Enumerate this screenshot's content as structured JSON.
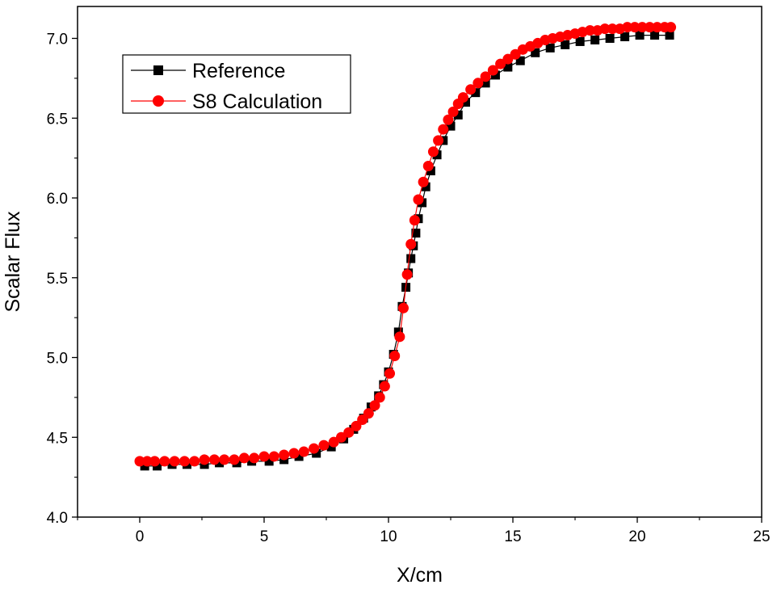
{
  "chart_data": {
    "type": "scatter",
    "xlabel": "X/cm",
    "ylabel": "Scalar Flux",
    "xlim": [
      -2.5,
      25
    ],
    "ylim": [
      4.0,
      7.2
    ],
    "x_ticks": [
      0,
      5,
      10,
      15,
      20,
      25
    ],
    "x_tick_labels": [
      "0",
      "5",
      "10",
      "15",
      "20",
      "25"
    ],
    "y_ticks": [
      4.0,
      4.5,
      5.0,
      5.5,
      6.0,
      6.5,
      7.0
    ],
    "y_tick_labels": [
      "4.0",
      "4.5",
      "5.0",
      "5.5",
      "6.0",
      "6.5",
      "7.0"
    ],
    "grid": false,
    "legend_position": "top-left",
    "series": [
      {
        "name": "Reference",
        "color": "#000000",
        "marker": "square",
        "x": [
          0.2,
          0.7,
          1.3,
          1.9,
          2.6,
          3.2,
          3.9,
          4.5,
          5.2,
          5.8,
          6.4,
          7.1,
          7.7,
          8.2,
          8.6,
          9.0,
          9.3,
          9.6,
          9.8,
          10.0,
          10.2,
          10.4,
          10.55,
          10.7,
          10.8,
          10.9,
          11.0,
          11.1,
          11.2,
          11.35,
          11.5,
          11.7,
          11.95,
          12.2,
          12.5,
          12.8,
          13.1,
          13.5,
          13.9,
          14.3,
          14.8,
          15.3,
          15.9,
          16.5,
          17.1,
          17.7,
          18.3,
          18.9,
          19.5,
          20.1,
          20.7,
          21.3
        ],
        "y": [
          4.32,
          4.32,
          4.33,
          4.33,
          4.33,
          4.34,
          4.34,
          4.35,
          4.35,
          4.36,
          4.38,
          4.4,
          4.44,
          4.49,
          4.55,
          4.62,
          4.69,
          4.76,
          4.83,
          4.91,
          5.02,
          5.16,
          5.32,
          5.44,
          5.53,
          5.62,
          5.7,
          5.78,
          5.87,
          5.97,
          6.07,
          6.17,
          6.27,
          6.36,
          6.45,
          6.52,
          6.6,
          6.66,
          6.72,
          6.77,
          6.82,
          6.86,
          6.91,
          6.94,
          6.96,
          6.98,
          6.99,
          7.0,
          7.01,
          7.02,
          7.02,
          7.02
        ]
      },
      {
        "name": "S8 Calculation",
        "color": "#ff0000",
        "marker": "circle",
        "x": [
          0.0,
          0.3,
          0.6,
          1.0,
          1.4,
          1.8,
          2.2,
          2.6,
          3.0,
          3.4,
          3.8,
          4.2,
          4.6,
          5.0,
          5.4,
          5.8,
          6.2,
          6.6,
          7.0,
          7.4,
          7.8,
          8.1,
          8.4,
          8.7,
          8.95,
          9.2,
          9.45,
          9.65,
          9.85,
          10.05,
          10.25,
          10.45,
          10.6,
          10.75,
          10.9,
          11.05,
          11.2,
          11.4,
          11.6,
          11.8,
          12.0,
          12.2,
          12.4,
          12.6,
          12.8,
          13.0,
          13.3,
          13.6,
          13.9,
          14.2,
          14.5,
          14.8,
          15.1,
          15.4,
          15.7,
          16.0,
          16.3,
          16.6,
          16.9,
          17.2,
          17.5,
          17.8,
          18.1,
          18.4,
          18.7,
          19.0,
          19.3,
          19.6,
          19.9,
          20.2,
          20.5,
          20.8,
          21.1,
          21.35
        ],
        "y": [
          4.35,
          4.35,
          4.35,
          4.35,
          4.35,
          4.35,
          4.35,
          4.36,
          4.36,
          4.36,
          4.36,
          4.37,
          4.37,
          4.38,
          4.38,
          4.39,
          4.4,
          4.41,
          4.43,
          4.45,
          4.47,
          4.5,
          4.53,
          4.57,
          4.61,
          4.65,
          4.7,
          4.75,
          4.82,
          4.9,
          5.01,
          5.13,
          5.31,
          5.52,
          5.71,
          5.86,
          5.99,
          6.1,
          6.2,
          6.29,
          6.36,
          6.43,
          6.49,
          6.54,
          6.59,
          6.63,
          6.68,
          6.72,
          6.76,
          6.8,
          6.84,
          6.87,
          6.9,
          6.93,
          6.95,
          6.97,
          6.99,
          7.0,
          7.01,
          7.02,
          7.03,
          7.04,
          7.05,
          7.05,
          7.06,
          7.06,
          7.06,
          7.07,
          7.07,
          7.07,
          7.07,
          7.07,
          7.07,
          7.07
        ]
      }
    ]
  }
}
